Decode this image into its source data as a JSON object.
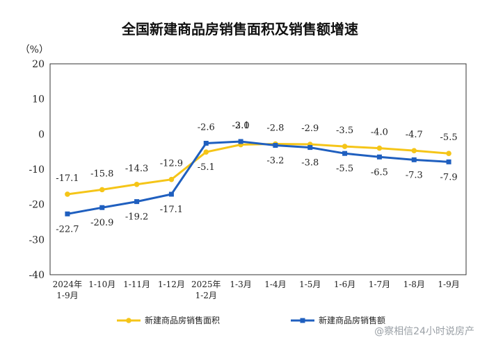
{
  "chart_data": {
    "type": "line",
    "title": "全国新建商品房销售面积及销售额增速",
    "ylabel": "（%）",
    "ylim": [
      -40,
      20
    ],
    "yticks": [
      20,
      10,
      0,
      -10,
      -20,
      -30,
      -40
    ],
    "grid": false,
    "legend_position": "bottom",
    "categories": [
      [
        "2024年",
        "1-9月"
      ],
      [
        "1-10月"
      ],
      [
        "1-11月"
      ],
      [
        "1-12月"
      ],
      [
        "2025年",
        "1-2月"
      ],
      [
        "1-3月"
      ],
      [
        "1-4月"
      ],
      [
        "1-5月"
      ],
      [
        "1-6月"
      ],
      [
        "1-7月"
      ],
      [
        "1-8月"
      ],
      [
        "1-9月"
      ]
    ],
    "series": [
      {
        "name": "新建商品房销售面积",
        "color": "#f5c518",
        "marker": "circle",
        "values": [
          -17.1,
          -15.8,
          -14.3,
          -12.9,
          -5.1,
          -3.0,
          -2.8,
          -2.9,
          -3.5,
          -4.0,
          -4.7,
          -5.5
        ],
        "labels": [
          "-17.1",
          "-15.8",
          "-14.3",
          "-12.9",
          "-5.1",
          "-3.0",
          "-2.8",
          "-2.9",
          "-3.5",
          "-4.0",
          "-4.7",
          "-5.5"
        ]
      },
      {
        "name": "新建商品房销售额",
        "color": "#1f5fbf",
        "marker": "square",
        "values": [
          -22.7,
          -20.9,
          -19.2,
          -17.1,
          -2.6,
          -2.1,
          -3.2,
          -3.8,
          -5.5,
          -6.5,
          -7.3,
          -7.9
        ],
        "labels": [
          "-22.7",
          "-20.9",
          "-19.2",
          "-17.1",
          "-2.6",
          "-2.1",
          "-3.2",
          "-3.8",
          "-5.5",
          "-6.5",
          "-7.3",
          "-7.9"
        ]
      }
    ]
  },
  "watermark": "@察相信24小时说房产"
}
